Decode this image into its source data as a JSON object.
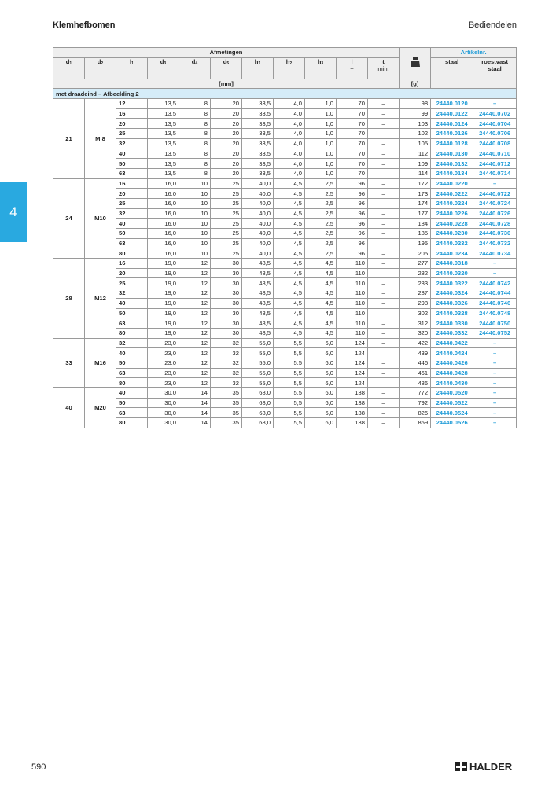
{
  "header": {
    "title": "Klemhefbomen",
    "section": "Bediendelen"
  },
  "tab": "4",
  "table": {
    "head": {
      "group": "Afmetingen",
      "article": "Artikelnr.",
      "columns": [
        {
          "sym": "d",
          "sub": "1"
        },
        {
          "sym": "d",
          "sub": "2"
        },
        {
          "sym": "l",
          "sub": "1"
        },
        {
          "sym": "d",
          "sub": "3"
        },
        {
          "sym": "d",
          "sub": "4"
        },
        {
          "sym": "d",
          "sub": "5"
        },
        {
          "sym": "h",
          "sub": "1"
        },
        {
          "sym": "h",
          "sub": "2"
        },
        {
          "sym": "h",
          "sub": "3"
        },
        {
          "sym": "l",
          "note": "~"
        },
        {
          "sym": "t",
          "note": "min."
        }
      ],
      "staal": "staal",
      "roestvast": "roestvast staal",
      "unit_mm": "[mm]",
      "unit_g": "[g]"
    },
    "section": "met draadeind – Afbeelding 2",
    "groups": [
      {
        "d1": "21",
        "d2": "M 8",
        "rows": [
          [
            "12",
            "13,5",
            "8",
            "20",
            "33,5",
            "4,0",
            "1,0",
            "70",
            "–",
            "98",
            "24440.0120",
            "–"
          ],
          [
            "16",
            "13,5",
            "8",
            "20",
            "33,5",
            "4,0",
            "1,0",
            "70",
            "–",
            "99",
            "24440.0122",
            "24440.0702"
          ],
          [
            "20",
            "13,5",
            "8",
            "20",
            "33,5",
            "4,0",
            "1,0",
            "70",
            "–",
            "103",
            "24440.0124",
            "24440.0704"
          ],
          [
            "25",
            "13,5",
            "8",
            "20",
            "33,5",
            "4,0",
            "1,0",
            "70",
            "–",
            "102",
            "24440.0126",
            "24440.0706"
          ],
          [
            "32",
            "13,5",
            "8",
            "20",
            "33,5",
            "4,0",
            "1,0",
            "70",
            "–",
            "105",
            "24440.0128",
            "24440.0708"
          ],
          [
            "40",
            "13,5",
            "8",
            "20",
            "33,5",
            "4,0",
            "1,0",
            "70",
            "–",
            "112",
            "24440.0130",
            "24440.0710"
          ],
          [
            "50",
            "13,5",
            "8",
            "20",
            "33,5",
            "4,0",
            "1,0",
            "70",
            "–",
            "109",
            "24440.0132",
            "24440.0712"
          ],
          [
            "63",
            "13,5",
            "8",
            "20",
            "33,5",
            "4,0",
            "1,0",
            "70",
            "–",
            "114",
            "24440.0134",
            "24440.0714"
          ]
        ]
      },
      {
        "d1": "24",
        "d2": "M10",
        "rows": [
          [
            "16",
            "16,0",
            "10",
            "25",
            "40,0",
            "4,5",
            "2,5",
            "96",
            "–",
            "172",
            "24440.0220",
            "–"
          ],
          [
            "20",
            "16,0",
            "10",
            "25",
            "40,0",
            "4,5",
            "2,5",
            "96",
            "–",
            "173",
            "24440.0222",
            "24440.0722"
          ],
          [
            "25",
            "16,0",
            "10",
            "25",
            "40,0",
            "4,5",
            "2,5",
            "96",
            "–",
            "174",
            "24440.0224",
            "24440.0724"
          ],
          [
            "32",
            "16,0",
            "10",
            "25",
            "40,0",
            "4,5",
            "2,5",
            "96",
            "–",
            "177",
            "24440.0226",
            "24440.0726"
          ],
          [
            "40",
            "16,0",
            "10",
            "25",
            "40,0",
            "4,5",
            "2,5",
            "96",
            "–",
            "184",
            "24440.0228",
            "24440.0728"
          ],
          [
            "50",
            "16,0",
            "10",
            "25",
            "40,0",
            "4,5",
            "2,5",
            "96",
            "–",
            "185",
            "24440.0230",
            "24440.0730"
          ],
          [
            "63",
            "16,0",
            "10",
            "25",
            "40,0",
            "4,5",
            "2,5",
            "96",
            "–",
            "195",
            "24440.0232",
            "24440.0732"
          ],
          [
            "80",
            "16,0",
            "10",
            "25",
            "40,0",
            "4,5",
            "2,5",
            "96",
            "–",
            "205",
            "24440.0234",
            "24440.0734"
          ]
        ]
      },
      {
        "d1": "28",
        "d2": "M12",
        "rows": [
          [
            "16",
            "19,0",
            "12",
            "30",
            "48,5",
            "4,5",
            "4,5",
            "110",
            "–",
            "277",
            "24440.0318",
            "–"
          ],
          [
            "20",
            "19,0",
            "12",
            "30",
            "48,5",
            "4,5",
            "4,5",
            "110",
            "–",
            "282",
            "24440.0320",
            "–"
          ],
          [
            "25",
            "19,0",
            "12",
            "30",
            "48,5",
            "4,5",
            "4,5",
            "110",
            "–",
            "283",
            "24440.0322",
            "24440.0742"
          ],
          [
            "32",
            "19,0",
            "12",
            "30",
            "48,5",
            "4,5",
            "4,5",
            "110",
            "–",
            "287",
            "24440.0324",
            "24440.0744"
          ],
          [
            "40",
            "19,0",
            "12",
            "30",
            "48,5",
            "4,5",
            "4,5",
            "110",
            "–",
            "298",
            "24440.0326",
            "24440.0746"
          ],
          [
            "50",
            "19,0",
            "12",
            "30",
            "48,5",
            "4,5",
            "4,5",
            "110",
            "–",
            "302",
            "24440.0328",
            "24440.0748"
          ],
          [
            "63",
            "19,0",
            "12",
            "30",
            "48,5",
            "4,5",
            "4,5",
            "110",
            "–",
            "312",
            "24440.0330",
            "24440.0750"
          ],
          [
            "80",
            "19,0",
            "12",
            "30",
            "48,5",
            "4,5",
            "4,5",
            "110",
            "–",
            "320",
            "24440.0332",
            "24440.0752"
          ]
        ]
      },
      {
        "d1": "33",
        "d2": "M16",
        "rows": [
          [
            "32",
            "23,0",
            "12",
            "32",
            "55,0",
            "5,5",
            "6,0",
            "124",
            "–",
            "422",
            "24440.0422",
            "–"
          ],
          [
            "40",
            "23,0",
            "12",
            "32",
            "55,0",
            "5,5",
            "6,0",
            "124",
            "–",
            "439",
            "24440.0424",
            "–"
          ],
          [
            "50",
            "23,0",
            "12",
            "32",
            "55,0",
            "5,5",
            "6,0",
            "124",
            "–",
            "446",
            "24440.0426",
            "–"
          ],
          [
            "63",
            "23,0",
            "12",
            "32",
            "55,0",
            "5,5",
            "6,0",
            "124",
            "–",
            "461",
            "24440.0428",
            "–"
          ],
          [
            "80",
            "23,0",
            "12",
            "32",
            "55,0",
            "5,5",
            "6,0",
            "124",
            "–",
            "486",
            "24440.0430",
            "–"
          ]
        ]
      },
      {
        "d1": "40",
        "d2": "M20",
        "rows": [
          [
            "40",
            "30,0",
            "14",
            "35",
            "68,0",
            "5,5",
            "6,0",
            "138",
            "–",
            "772",
            "24440.0520",
            "–"
          ],
          [
            "50",
            "30,0",
            "14",
            "35",
            "68,0",
            "5,5",
            "6,0",
            "138",
            "–",
            "792",
            "24440.0522",
            "–"
          ],
          [
            "63",
            "30,0",
            "14",
            "35",
            "68,0",
            "5,5",
            "6,0",
            "138",
            "–",
            "826",
            "24440.0524",
            "–"
          ],
          [
            "80",
            "30,0",
            "14",
            "35",
            "68,0",
            "5,5",
            "6,0",
            "138",
            "–",
            "859",
            "24440.0526",
            "–"
          ]
        ]
      }
    ]
  },
  "footer": {
    "page": "590",
    "brand": "HALDER"
  }
}
